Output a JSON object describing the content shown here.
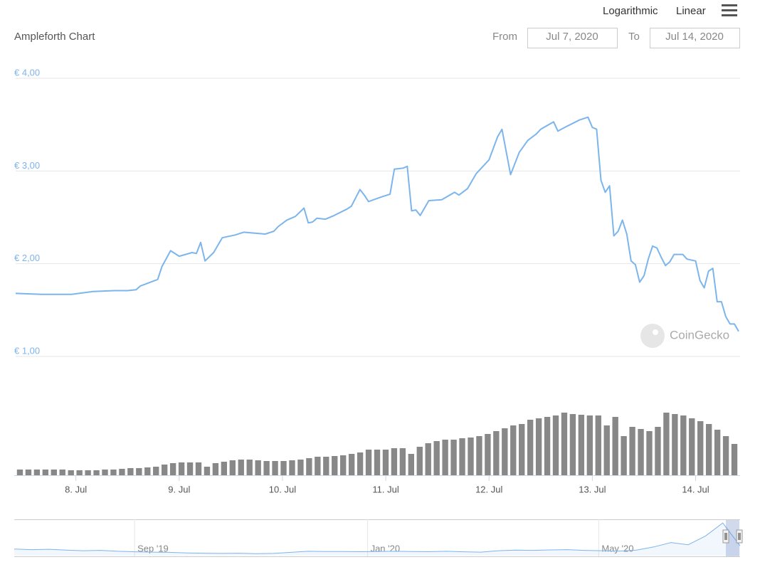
{
  "toolbar": {
    "scale_buttons": [
      "Logarithmic",
      "Linear"
    ]
  },
  "range": {
    "from_label": "From",
    "from": "Jul 7, 2020",
    "to_label": "To",
    "to": "Jul 14, 2020"
  },
  "watermark": "CoinGecko",
  "chart_data": {
    "type": "line",
    "title": "Ampleforth Chart",
    "log_scale": false,
    "grid": true,
    "series": [
      {
        "color": "#7cb5ec",
        "x": [
          "2020-07-07T10:00",
          "2020-07-07T16:00",
          "2020-07-07T23:00",
          "2020-07-08T04:00",
          "2020-07-08T09:00",
          "2020-07-08T12:00",
          "2020-07-08T14:00",
          "2020-07-08T15:00",
          "2020-07-08T19:00",
          "2020-07-08T20:00",
          "2020-07-08T22:00",
          "2020-07-09T00:00",
          "2020-07-09T03:00",
          "2020-07-09T04:00",
          "2020-07-09T05:00",
          "2020-07-09T06:00",
          "2020-07-09T08:00",
          "2020-07-09T10:00",
          "2020-07-09T13:00",
          "2020-07-09T15:00",
          "2020-07-09T20:00",
          "2020-07-09T22:00",
          "2020-07-09T23:00",
          "2020-07-10T01:00",
          "2020-07-10T03:00",
          "2020-07-10T05:00",
          "2020-07-10T06:00",
          "2020-07-10T07:00",
          "2020-07-10T08:00",
          "2020-07-10T10:00",
          "2020-07-10T12:00",
          "2020-07-10T15:00",
          "2020-07-10T16:00",
          "2020-07-10T18:00",
          "2020-07-10T19:00",
          "2020-07-10T20:00",
          "2020-07-10T23:00",
          "2020-07-11T01:00",
          "2020-07-11T02:00",
          "2020-07-11T04:00",
          "2020-07-11T05:00",
          "2020-07-11T06:00",
          "2020-07-11T07:00",
          "2020-07-11T08:00",
          "2020-07-11T10:00",
          "2020-07-11T13:00",
          "2020-07-11T16:00",
          "2020-07-11T17:00",
          "2020-07-11T19:00",
          "2020-07-11T21:00",
          "2020-07-12T00:00",
          "2020-07-12T02:00",
          "2020-07-12T03:00",
          "2020-07-12T05:00",
          "2020-07-12T07:00",
          "2020-07-12T09:00",
          "2020-07-12T11:00",
          "2020-07-12T12:00",
          "2020-07-12T15:00",
          "2020-07-12T16:00",
          "2020-07-12T18:00",
          "2020-07-12T21:00",
          "2020-07-12T23:00",
          "2020-07-13T00:00",
          "2020-07-13T01:00",
          "2020-07-13T02:00",
          "2020-07-13T03:00",
          "2020-07-13T04:00",
          "2020-07-13T05:00",
          "2020-07-13T06:00",
          "2020-07-13T07:00",
          "2020-07-13T08:00",
          "2020-07-13T09:00",
          "2020-07-13T10:00",
          "2020-07-13T11:00",
          "2020-07-13T12:00",
          "2020-07-13T13:00",
          "2020-07-13T14:00",
          "2020-07-13T15:00",
          "2020-07-13T16:00",
          "2020-07-13T17:00",
          "2020-07-13T18:00",
          "2020-07-13T19:00",
          "2020-07-13T21:00",
          "2020-07-13T22:00",
          "2020-07-14T00:00",
          "2020-07-14T01:00",
          "2020-07-14T02:00",
          "2020-07-14T03:00",
          "2020-07-14T04:00",
          "2020-07-14T05:00",
          "2020-07-14T06:00",
          "2020-07-14T07:00",
          "2020-07-14T08:00",
          "2020-07-14T09:00",
          "2020-07-14T10:00"
        ],
        "values": [
          1.68,
          1.67,
          1.67,
          1.7,
          1.71,
          1.71,
          1.72,
          1.76,
          1.83,
          1.97,
          2.14,
          2.08,
          2.12,
          2.11,
          2.23,
          2.03,
          2.12,
          2.28,
          2.31,
          2.34,
          2.32,
          2.35,
          2.4,
          2.47,
          2.51,
          2.6,
          2.44,
          2.45,
          2.49,
          2.48,
          2.52,
          2.59,
          2.62,
          2.8,
          2.74,
          2.67,
          2.72,
          2.75,
          3.02,
          3.03,
          3.05,
          2.57,
          2.58,
          2.52,
          2.68,
          2.69,
          2.77,
          2.74,
          2.81,
          2.97,
          3.12,
          3.37,
          3.45,
          2.96,
          3.2,
          3.33,
          3.4,
          3.45,
          3.53,
          3.43,
          3.48,
          3.55,
          3.58,
          3.47,
          3.45,
          2.9,
          2.77,
          2.84,
          2.3,
          2.35,
          2.47,
          2.32,
          2.03,
          1.99,
          1.8,
          1.87,
          2.05,
          2.19,
          2.17,
          2.07,
          1.98,
          2.02,
          2.1,
          2.1,
          2.05,
          2.03,
          1.82,
          1.74,
          1.92,
          1.95,
          1.59,
          1.59,
          1.43,
          1.35,
          1.35,
          1.27
        ]
      }
    ],
    "xlim": [
      "2020-07-07T10:00",
      "2020-07-14T10:00"
    ],
    "xticks": [
      {
        "value": "2020-07-08T00:00",
        "label": "8. Jul"
      },
      {
        "value": "2020-07-09T00:00",
        "label": "9. Jul"
      },
      {
        "value": "2020-07-10T00:00",
        "label": "10. Jul"
      },
      {
        "value": "2020-07-11T00:00",
        "label": "11. Jul"
      },
      {
        "value": "2020-07-12T00:00",
        "label": "12. Jul"
      },
      {
        "value": "2020-07-13T00:00",
        "label": "13. Jul"
      },
      {
        "value": "2020-07-14T00:00",
        "label": "14. Jul"
      }
    ],
    "ylim": [
      1,
      4
    ],
    "yticks": [
      {
        "value": 1,
        "label": "€ 1,00"
      },
      {
        "value": 2,
        "label": "€ 2,00"
      },
      {
        "value": 3,
        "label": "€ 3,00"
      },
      {
        "value": 4,
        "label": "€ 4,00"
      }
    ],
    "volume": {
      "color": "#888888",
      "ylim": [
        0,
        100
      ],
      "categories": [
        null,
        null,
        null,
        null,
        null,
        null,
        null,
        null,
        null,
        null,
        null,
        null,
        null,
        null,
        null,
        null,
        null,
        null,
        null,
        null,
        null,
        null,
        null,
        null,
        null,
        null,
        null,
        null,
        null,
        null,
        null,
        null,
        null,
        null,
        null,
        null,
        null,
        null,
        null,
        null,
        null,
        null,
        null,
        null,
        null,
        null,
        null,
        null,
        null,
        null,
        null,
        null,
        null,
        null,
        null,
        null,
        null,
        null,
        null,
        null,
        null,
        null,
        null,
        null,
        null,
        null,
        null,
        null,
        null,
        null,
        null,
        null,
        null,
        null,
        null,
        null,
        null,
        null,
        null,
        null,
        null,
        null,
        null,
        null,
        null
      ],
      "values": [
        8,
        8,
        8,
        8,
        8,
        8,
        7,
        7,
        7,
        7,
        8,
        8,
        9,
        10,
        10,
        11,
        12,
        15,
        17,
        18,
        18,
        18,
        12,
        17,
        19,
        21,
        22,
        22,
        21,
        20,
        20,
        20,
        21,
        22,
        24,
        26,
        26,
        27,
        28,
        30,
        32,
        36,
        36,
        36,
        38,
        38,
        30,
        40,
        45,
        48,
        50,
        50,
        52,
        53,
        55,
        58,
        62,
        66,
        70,
        72,
        78,
        80,
        82,
        84,
        88,
        86,
        85,
        84,
        84,
        70,
        82,
        55,
        68,
        65,
        62,
        68,
        88,
        86,
        84,
        80,
        76,
        72,
        64,
        55,
        44
      ]
    },
    "navigator": {
      "color": "#7cb5ec",
      "ylim": [
        0.4,
        3.6
      ],
      "xlim": [
        "2019-06-30T00:00",
        "2020-07-14T00:00"
      ],
      "xticks": [
        {
          "value": "2019-09-01T00:00",
          "label": "Sep '19"
        },
        {
          "value": "2020-01-01T00:00",
          "label": "Jan '20"
        },
        {
          "value": "2020-05-01T00:00",
          "label": "May '20"
        }
      ],
      "categories": [
        null,
        null,
        null,
        null,
        null,
        null,
        null,
        null,
        null,
        null,
        null,
        null,
        null,
        null,
        null,
        null,
        null,
        null,
        null,
        null,
        null,
        null,
        null,
        null,
        null,
        null,
        null,
        null,
        null,
        null,
        null,
        null,
        null,
        null,
        null,
        null,
        null,
        null,
        null,
        null,
        null,
        null,
        null
      ],
      "values": [
        1.0,
        0.95,
        0.98,
        0.9,
        0.85,
        0.88,
        0.8,
        0.75,
        0.72,
        0.7,
        0.65,
        0.62,
        0.6,
        0.62,
        0.58,
        0.6,
        0.7,
        0.8,
        0.78,
        0.78,
        0.76,
        0.78,
        0.8,
        0.78,
        0.76,
        0.8,
        0.75,
        0.72,
        0.85,
        0.9,
        0.88,
        0.92,
        0.95,
        0.88,
        0.85,
        0.82,
        0.9,
        1.2,
        1.6,
        1.4,
        2.2,
        3.4,
        1.3
      ]
    }
  }
}
